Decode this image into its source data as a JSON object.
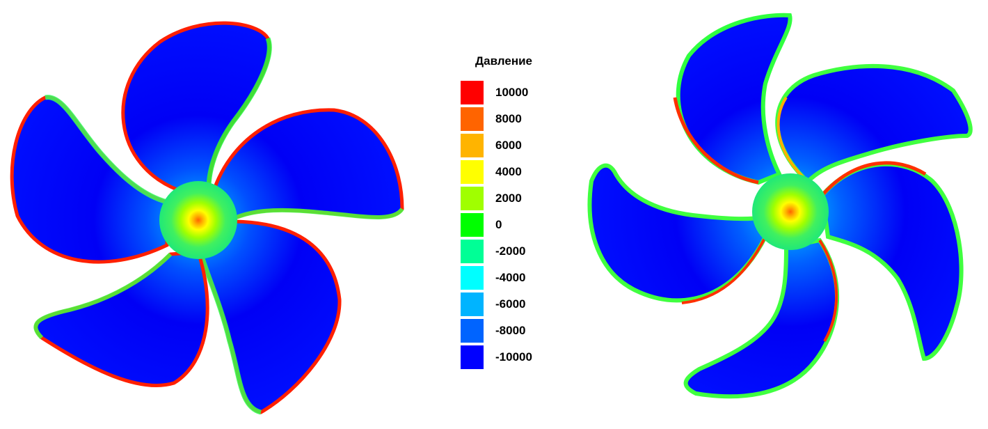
{
  "legend": {
    "title": "Давление",
    "items": [
      {
        "label": "10000",
        "color": "#ff0000"
      },
      {
        "label": "8000",
        "color": "#ff6400"
      },
      {
        "label": "6000",
        "color": "#ffb400"
      },
      {
        "label": "4000",
        "color": "#ffff00"
      },
      {
        "label": "2000",
        "color": "#a0ff00"
      },
      {
        "label": "0",
        "color": "#00ff00"
      },
      {
        "label": "-2000",
        "color": "#00ff96"
      },
      {
        "label": "-4000",
        "color": "#00ffff"
      },
      {
        "label": "-6000",
        "color": "#00b4ff"
      },
      {
        "label": "-8000",
        "color": "#0064ff"
      },
      {
        "label": "-10000",
        "color": "#0000ff"
      }
    ]
  },
  "propellers": [
    {
      "name": "left",
      "blade_count": 5
    },
    {
      "name": "right",
      "blade_count": 5
    }
  ]
}
